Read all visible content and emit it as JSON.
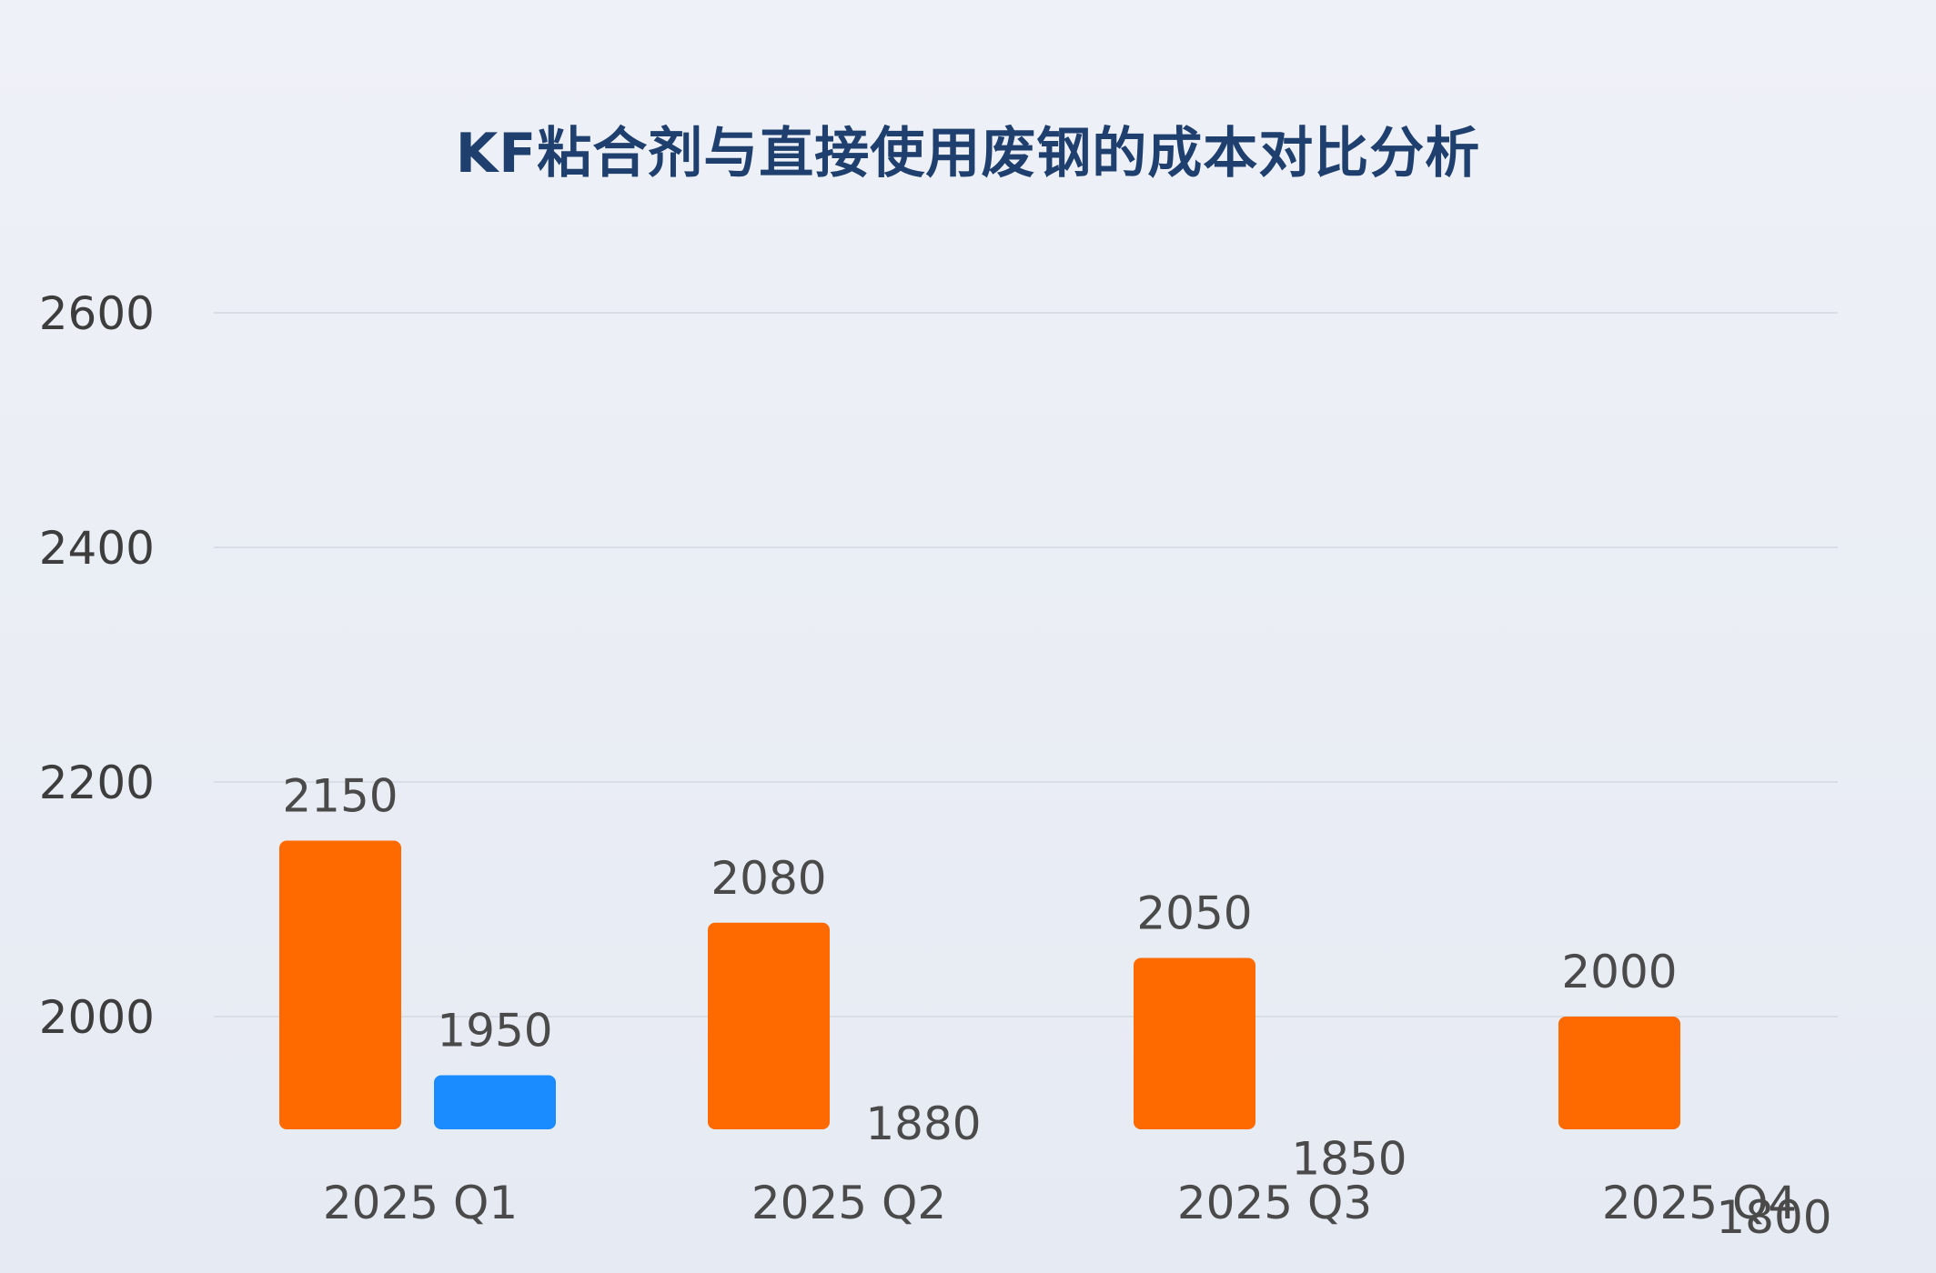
{
  "chart_data": {
    "type": "bar",
    "title": "KF粘合剂与直接使用废钢的成本对比分析",
    "xlabel": "",
    "ylabel": "",
    "categories": [
      "2025 Q1",
      "2025 Q2",
      "2025 Q3",
      "2025 Q4"
    ],
    "y_ticks": [
      2000,
      2200,
      2400,
      2600
    ],
    "ylim": [
      1900,
      2600
    ],
    "grid": true,
    "series": [
      {
        "values": [
          2150,
          2080,
          2050,
          2000
        ],
        "color": "#ff6a00"
      },
      {
        "values": [
          1950,
          1880,
          1850,
          1800
        ],
        "color": "#1a8cff"
      }
    ]
  }
}
